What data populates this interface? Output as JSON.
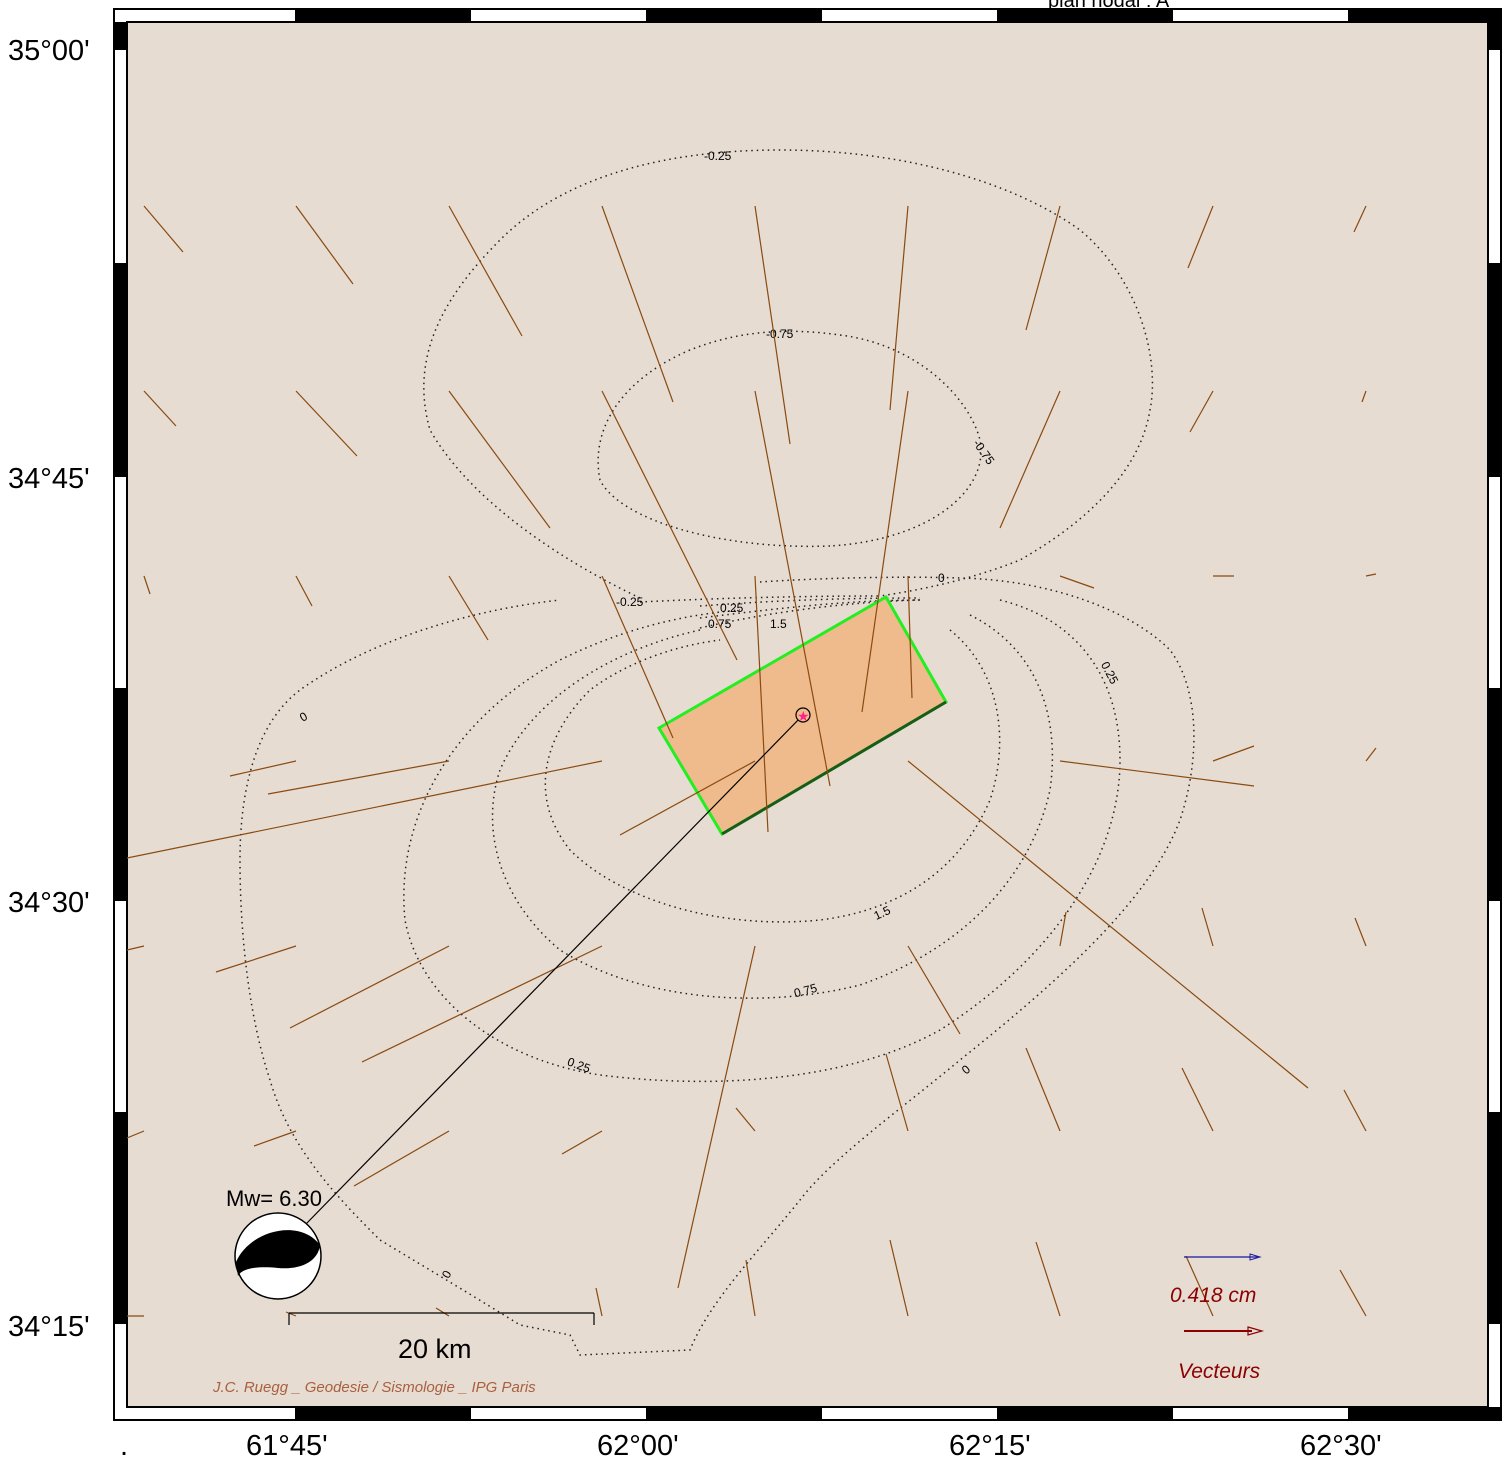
{
  "header": {
    "title_fragment": "plan nodal : A"
  },
  "axes": {
    "lat_labels": [
      "35°00'",
      "34°45'",
      "34°30'",
      "34°15'"
    ],
    "lon_labels": [
      "61°45'",
      "62°00'",
      "62°15'",
      "62°30'"
    ],
    "corner_mark": "."
  },
  "contours": {
    "levels": [
      "-0.25",
      "-0.75",
      "-0.75",
      "-0.25",
      "0.25",
      "0.75",
      "1.5",
      "0",
      "0.25",
      "0",
      "1.5",
      "0.75",
      "0.25",
      "0",
      "0"
    ]
  },
  "focal_mechanism": {
    "magnitude_label": "Mw= 6.30"
  },
  "scale_bar": {
    "label": "20 km"
  },
  "legend": {
    "magnitude_label": "0.418  cm",
    "vectors_label": "Vecteurs",
    "reference_color": "#1a1aa0",
    "vector_color": "#8b0000"
  },
  "credit": "J.C. Ruegg _ Geodesie / Sismologie _ IPG Paris",
  "colors": {
    "background": "#e6dcd2",
    "fault_fill": "#efbb8c",
    "fault_outline": "#22ee22",
    "arrows": "#8a4a10",
    "epicenter": "#ff2288",
    "credit": "#a86040"
  }
}
